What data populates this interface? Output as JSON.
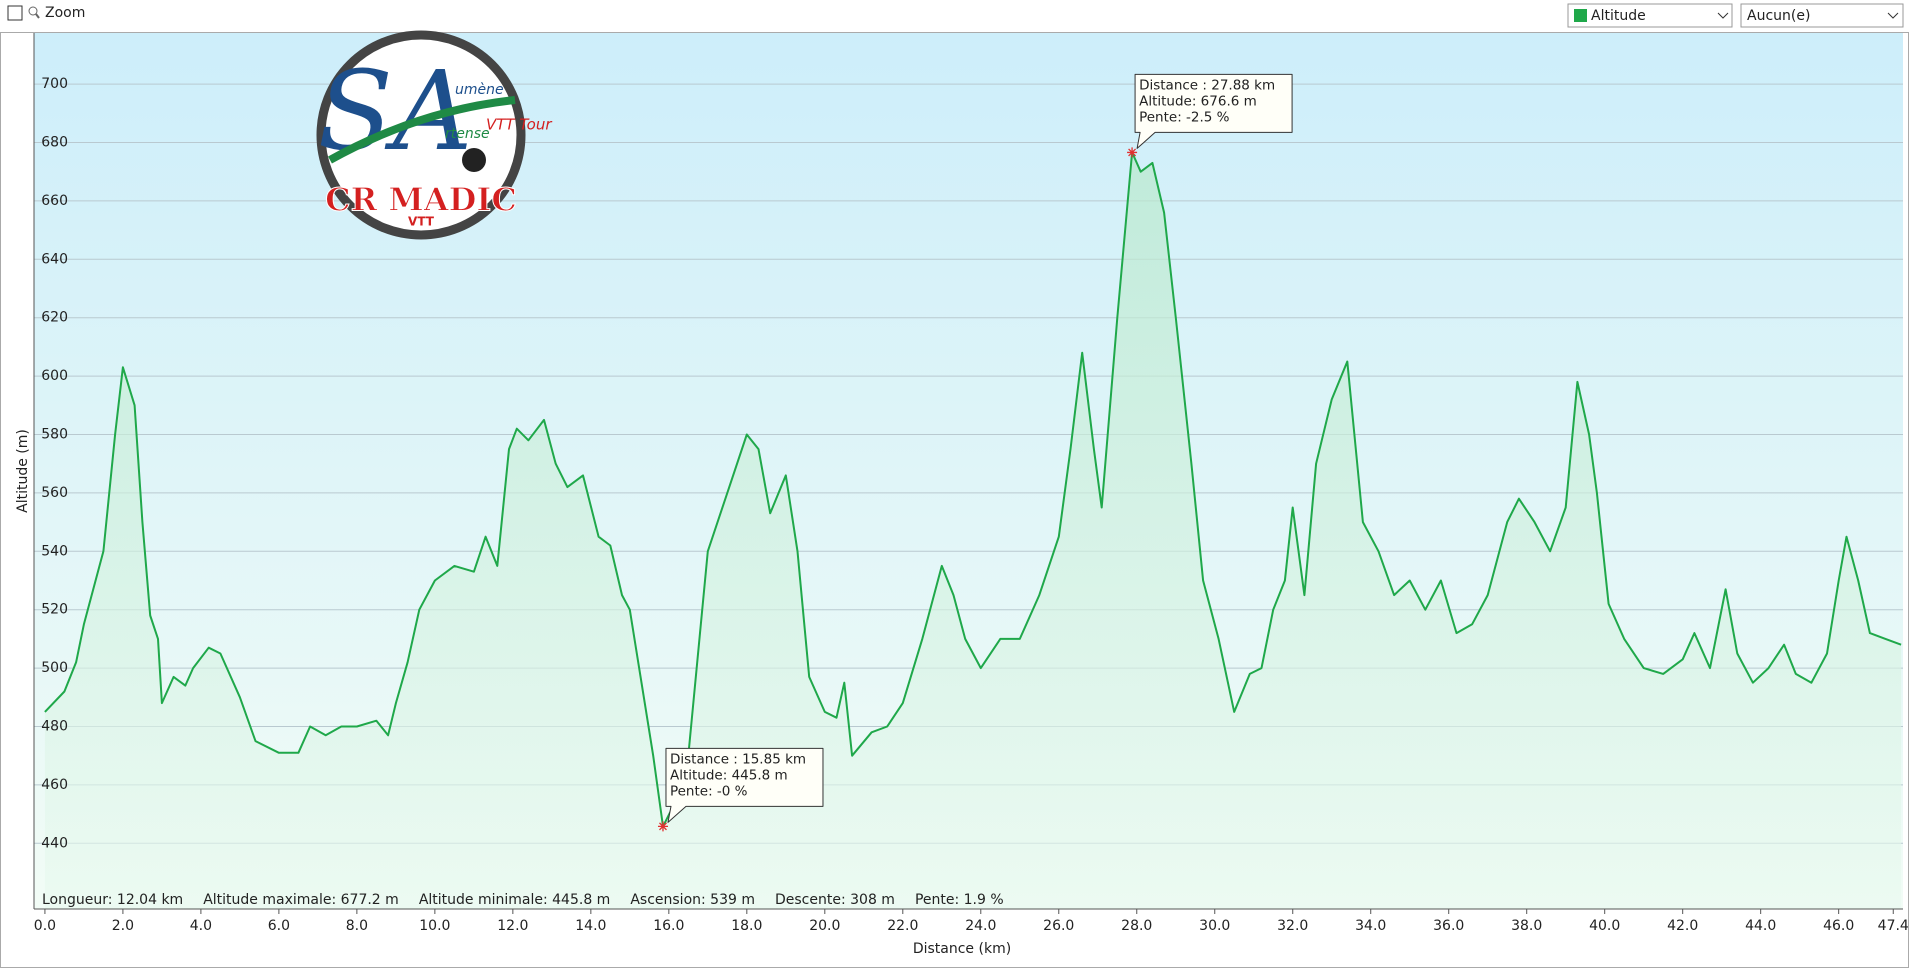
{
  "toolbar": {
    "zoom": "Zoom",
    "series_select": "Altitude",
    "secondary_select": "Aucun(e)"
  },
  "logo": {
    "letters": "SA",
    "word1": "umène",
    "word2": "rtense",
    "word3": "VTT Tour",
    "title": "CR MADIC",
    "sub": "VTT"
  },
  "chart_data": {
    "type": "line",
    "xlabel": "Distance   (km)",
    "ylabel": "Altitude (m)",
    "xlim": [
      -0.28,
      47.65
    ],
    "ylim": [
      417.5,
      717.5
    ],
    "xticks": [
      {
        "value": 0,
        "label": "0.0"
      },
      {
        "value": 2,
        "label": "2.0"
      },
      {
        "value": 4,
        "label": "4.0"
      },
      {
        "value": 6,
        "label": "6.0"
      },
      {
        "value": 8,
        "label": "8.0"
      },
      {
        "value": 10,
        "label": "10.0"
      },
      {
        "value": 12,
        "label": "12.0"
      },
      {
        "value": 14,
        "label": "14.0"
      },
      {
        "value": 16,
        "label": "16.0"
      },
      {
        "value": 18,
        "label": "18.0"
      },
      {
        "value": 20,
        "label": "20.0"
      },
      {
        "value": 22,
        "label": "22.0"
      },
      {
        "value": 24,
        "label": "24.0"
      },
      {
        "value": 26,
        "label": "26.0"
      },
      {
        "value": 28,
        "label": "28.0"
      },
      {
        "value": 30,
        "label": "30.0"
      },
      {
        "value": 32,
        "label": "32.0"
      },
      {
        "value": 34,
        "label": "34.0"
      },
      {
        "value": 36,
        "label": "36.0"
      },
      {
        "value": 38,
        "label": "38.0"
      },
      {
        "value": 40,
        "label": "40.0"
      },
      {
        "value": 42,
        "label": "42.0"
      },
      {
        "value": 44,
        "label": "44.0"
      },
      {
        "value": 46,
        "label": "46.0"
      },
      {
        "value": 47.4,
        "label": "47.4"
      }
    ],
    "yticks": [
      440,
      460,
      480,
      500,
      520,
      540,
      560,
      580,
      600,
      620,
      640,
      660,
      680,
      700
    ],
    "grid": true,
    "x": [
      0,
      0.5,
      0.8,
      1.0,
      1.5,
      1.8,
      2.0,
      2.3,
      2.5,
      2.7,
      2.9,
      3.0,
      3.3,
      3.6,
      3.8,
      4.2,
      4.5,
      5.0,
      5.4,
      6.0,
      6.5,
      6.8,
      7.2,
      7.6,
      8.0,
      8.5,
      8.8,
      9.0,
      9.3,
      9.6,
      10.0,
      10.5,
      11.0,
      11.3,
      11.6,
      11.9,
      12.1,
      12.4,
      12.8,
      13.1,
      13.4,
      13.8,
      14.2,
      14.5,
      14.8,
      15.0,
      15.3,
      15.6,
      15.85,
      16.2,
      16.5,
      17.0,
      17.5,
      18.0,
      18.3,
      18.6,
      19.0,
      19.3,
      19.6,
      20.0,
      20.3,
      20.5,
      20.7,
      21.2,
      21.6,
      22.0,
      22.5,
      23.0,
      23.3,
      23.6,
      24.0,
      24.5,
      25.0,
      25.5,
      26.0,
      26.3,
      26.6,
      26.9,
      27.1,
      27.5,
      27.88,
      28.1,
      28.4,
      28.7,
      29.0,
      29.4,
      29.7,
      30.1,
      30.5,
      30.9,
      31.2,
      31.5,
      31.8,
      32.0,
      32.3,
      32.6,
      33.0,
      33.4,
      33.8,
      34.2,
      34.6,
      35.0,
      35.4,
      35.8,
      36.2,
      36.6,
      37.0,
      37.5,
      37.8,
      38.2,
      38.6,
      39.0,
      39.3,
      39.6,
      39.8,
      40.1,
      40.5,
      41.0,
      41.5,
      42.0,
      42.3,
      42.7,
      43.1,
      43.4,
      43.8,
      44.2,
      44.6,
      44.9,
      45.3,
      45.7,
      46.0,
      46.2,
      46.5,
      46.8,
      47.2,
      47.6
    ],
    "series": [
      {
        "name": "Altitude",
        "color": "#1fa84a",
        "values": [
          485,
          492,
          502,
          515,
          540,
          580,
          603,
          590,
          550,
          518,
          510,
          488,
          497,
          494,
          500,
          507,
          505,
          490,
          475,
          471,
          471,
          480,
          477,
          480,
          480,
          482,
          477,
          488,
          502,
          520,
          530,
          535,
          533,
          545,
          535,
          575,
          582,
          578,
          585,
          570,
          562,
          566,
          545,
          542,
          525,
          520,
          495,
          470,
          445.8,
          455,
          470,
          540,
          560,
          580,
          575,
          553,
          566,
          540,
          497,
          485,
          483,
          495,
          470,
          478,
          480,
          488,
          510,
          535,
          525,
          510,
          500,
          510,
          510,
          525,
          545,
          575,
          608,
          575,
          555,
          620,
          676.6,
          670,
          673,
          656,
          620,
          570,
          530,
          510,
          485,
          498,
          500,
          520,
          530,
          555,
          525,
          570,
          592,
          605,
          550,
          540,
          525,
          530,
          520,
          530,
          512,
          515,
          525,
          550,
          558,
          550,
          540,
          555,
          598,
          580,
          560,
          522,
          510,
          500,
          498,
          503,
          512,
          500,
          527,
          505,
          495,
          500,
          508,
          498,
          495,
          505,
          530,
          545,
          530,
          512,
          510,
          508
        ]
      }
    ],
    "annotations": [
      {
        "x": 15.85,
        "y": 445.8,
        "lines": [
          "Distance  : 15.85 km",
          "Altitude: 445.8 m",
          "Pente: -0 %"
        ]
      },
      {
        "x": 27.88,
        "y": 676.6,
        "lines": [
          "Distance  : 27.88 km",
          "Altitude: 676.6 m",
          "Pente: -2.5 %"
        ]
      }
    ],
    "stats": [
      "Longueur: 12.04 km",
      "Altitude maximale: 677.2 m",
      "Altitude minimale: 445.8 m",
      "Ascension: 539 m",
      "Descente: 308 m",
      "Pente: 1.9 %"
    ]
  }
}
